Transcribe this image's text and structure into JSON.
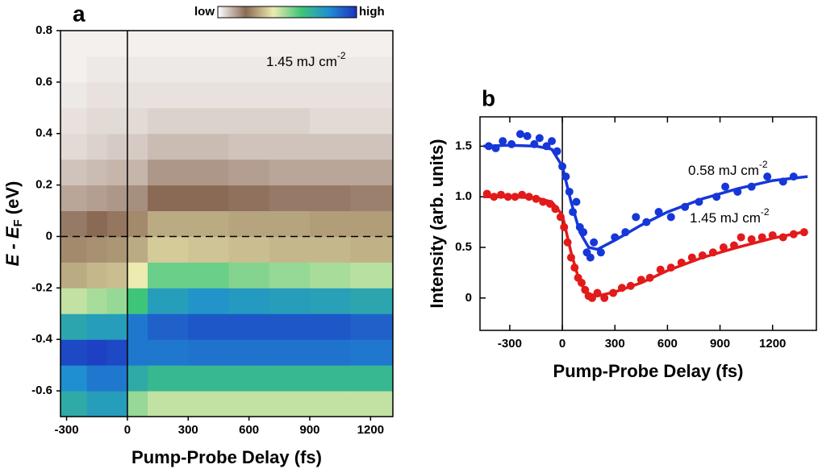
{
  "chart_data": [
    {
      "type": "heatmap",
      "panel": "a",
      "xlabel": "Pump-Probe Delay (fs)",
      "ylabel": {
        "text": "E - E",
        "sub": "F",
        "after": " (eV)"
      },
      "annotation": {
        "text": "1.45 mJ cm",
        "sup": "-2"
      },
      "colorbar": {
        "low": "low",
        "high": "high",
        "colormap": [
          "#ffffff",
          "#8a6a55",
          "#ecebb0",
          "#3fc57a",
          "#1f8fd2",
          "#1e32c0"
        ]
      },
      "xlim": [
        -330,
        1310
      ],
      "ylim": [
        -0.7,
        0.8
      ],
      "xticks": [
        -300,
        0,
        300,
        600,
        900,
        1200
      ],
      "yticks": [
        0.8,
        0.6,
        0.4,
        0.2,
        0,
        -0.2,
        -0.4,
        -0.6
      ],
      "hlines": [
        0
      ],
      "vlines": [
        0
      ],
      "xbins": [
        -330,
        -200,
        -100,
        0,
        100,
        300,
        500,
        700,
        900,
        1100,
        1310
      ],
      "ybins": [
        -0.7,
        -0.6,
        -0.5,
        -0.4,
        -0.3,
        -0.2,
        -0.1,
        0,
        0.1,
        0.2,
        0.3,
        0.4,
        0.5,
        0.6,
        0.7,
        0.8
      ],
      "z": [
        [
          0.7,
          0.75,
          0.75,
          0.5,
          0.45,
          0.45,
          0.45,
          0.45,
          0.45,
          0.45
        ],
        [
          0.8,
          0.85,
          0.85,
          0.7,
          0.65,
          0.65,
          0.65,
          0.65,
          0.65,
          0.65
        ],
        [
          0.95,
          0.97,
          0.95,
          0.85,
          0.85,
          0.86,
          0.86,
          0.86,
          0.86,
          0.85
        ],
        [
          0.72,
          0.75,
          0.75,
          0.85,
          0.9,
          0.92,
          0.92,
          0.92,
          0.92,
          0.9
        ],
        [
          0.45,
          0.48,
          0.5,
          0.6,
          0.75,
          0.78,
          0.76,
          0.75,
          0.74,
          0.72
        ],
        [
          0.3,
          0.32,
          0.33,
          0.4,
          0.55,
          0.55,
          0.52,
          0.5,
          0.48,
          0.46
        ],
        [
          0.25,
          0.26,
          0.27,
          0.3,
          0.35,
          0.34,
          0.33,
          0.32,
          0.32,
          0.31
        ],
        [
          0.18,
          0.2,
          0.22,
          0.25,
          0.3,
          0.3,
          0.29,
          0.29,
          0.28,
          0.28
        ],
        [
          0.12,
          0.13,
          0.14,
          0.15,
          0.2,
          0.2,
          0.19,
          0.18,
          0.18,
          0.17
        ],
        [
          0.08,
          0.09,
          0.1,
          0.1,
          0.14,
          0.14,
          0.13,
          0.12,
          0.12,
          0.12
        ],
        [
          0.05,
          0.06,
          0.07,
          0.07,
          0.09,
          0.09,
          0.08,
          0.08,
          0.08,
          0.08
        ],
        [
          0.04,
          0.05,
          0.05,
          0.05,
          0.06,
          0.06,
          0.06,
          0.06,
          0.05,
          0.05
        ],
        [
          0.03,
          0.04,
          0.04,
          0.04,
          0.04,
          0.04,
          0.04,
          0.04,
          0.04,
          0.04
        ],
        [
          0.02,
          0.03,
          0.03,
          0.03,
          0.03,
          0.03,
          0.03,
          0.03,
          0.03,
          0.03
        ],
        [
          0.02,
          0.02,
          0.02,
          0.02,
          0.02,
          0.02,
          0.02,
          0.02,
          0.02,
          0.02
        ]
      ]
    },
    {
      "type": "scatter",
      "panel": "b",
      "xlabel": "Pump-Probe Delay (fs)",
      "ylabel": {
        "text": "Intensity (arb. units)"
      },
      "xlim": [
        -470,
        1450
      ],
      "ylim": [
        -0.32,
        1.79
      ],
      "xticks": [
        -300,
        0,
        300,
        600,
        900,
        1200
      ],
      "yticks": [
        0,
        0.5,
        {
          "value": 1,
          "label": "1.0"
        },
        1.5
      ],
      "vlines": [
        0
      ],
      "series": [
        {
          "name": "0.58 mJ cm",
          "name_sup": "-2",
          "color": "#1637d8",
          "x": [
            -420,
            -380,
            -340,
            -290,
            -240,
            -200,
            -160,
            -130,
            -90,
            -60,
            -30,
            0,
            20,
            40,
            60,
            80,
            100,
            120,
            140,
            160,
            180,
            220,
            300,
            360,
            420,
            480,
            550,
            620,
            700,
            780,
            880,
            930,
            1000,
            1080,
            1170,
            1260,
            1320
          ],
          "y": [
            1.5,
            1.48,
            1.55,
            1.52,
            1.62,
            1.6,
            1.52,
            1.58,
            1.5,
            1.55,
            1.45,
            1.3,
            1.2,
            1.05,
            0.85,
            0.95,
            0.7,
            0.65,
            0.45,
            0.4,
            0.55,
            0.45,
            0.6,
            0.65,
            0.8,
            0.75,
            0.85,
            0.8,
            0.9,
            0.95,
            1.0,
            1.1,
            1.05,
            1.1,
            1.2,
            1.15,
            1.2
          ],
          "fit": {
            "x": [
              -450,
              -300,
              -150,
              -60,
              0,
              50,
              100,
              150,
              200,
              300,
              450,
              600,
              800,
              1000,
              1200,
              1400
            ],
            "y": [
              1.5,
              1.51,
              1.5,
              1.47,
              1.3,
              0.95,
              0.65,
              0.5,
              0.48,
              0.57,
              0.72,
              0.85,
              0.98,
              1.08,
              1.16,
              1.2
            ]
          }
        },
        {
          "name": "1.45 mJ cm",
          "name_sup": "-2",
          "color": "#e21a1a",
          "x": [
            -430,
            -390,
            -350,
            -310,
            -270,
            -230,
            -190,
            -150,
            -110,
            -70,
            -40,
            -10,
            10,
            30,
            50,
            70,
            90,
            110,
            130,
            150,
            170,
            200,
            240,
            290,
            340,
            390,
            450,
            500,
            560,
            620,
            680,
            740,
            800,
            860,
            920,
            980,
            1020,
            1080,
            1140,
            1200,
            1260,
            1320,
            1380
          ],
          "y": [
            1.03,
            1.0,
            1.02,
            1.0,
            1.0,
            1.02,
            1.0,
            0.98,
            0.95,
            0.93,
            0.88,
            0.8,
            0.7,
            0.55,
            0.4,
            0.3,
            0.2,
            0.15,
            0.08,
            0.02,
            0.0,
            0.05,
            0.0,
            0.05,
            0.1,
            0.12,
            0.18,
            0.2,
            0.28,
            0.3,
            0.35,
            0.4,
            0.42,
            0.45,
            0.5,
            0.52,
            0.6,
            0.58,
            0.6,
            0.62,
            0.6,
            0.63,
            0.65
          ],
          "fit": {
            "x": [
              -450,
              -300,
              -150,
              -60,
              0,
              50,
              100,
              150,
              200,
              300,
              450,
              600,
              800,
              1000,
              1200,
              1400
            ],
            "y": [
              1.0,
              1.0,
              0.99,
              0.95,
              0.82,
              0.45,
              0.15,
              0.04,
              0.02,
              0.06,
              0.15,
              0.27,
              0.4,
              0.5,
              0.59,
              0.66
            ]
          }
        }
      ]
    }
  ]
}
